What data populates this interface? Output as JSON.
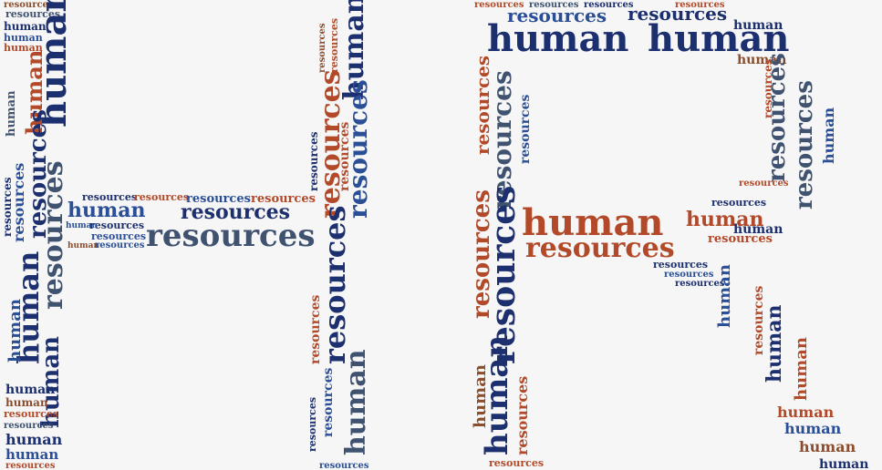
{
  "words": {
    "human": "human",
    "resources": "resources"
  },
  "colors": {
    "navy": "#1c2f6e",
    "blue": "#2b4f96",
    "slate": "#3f5270",
    "rust": "#b24a2a",
    "brown": "#8a4e2e",
    "steel": "#5d7192"
  }
}
